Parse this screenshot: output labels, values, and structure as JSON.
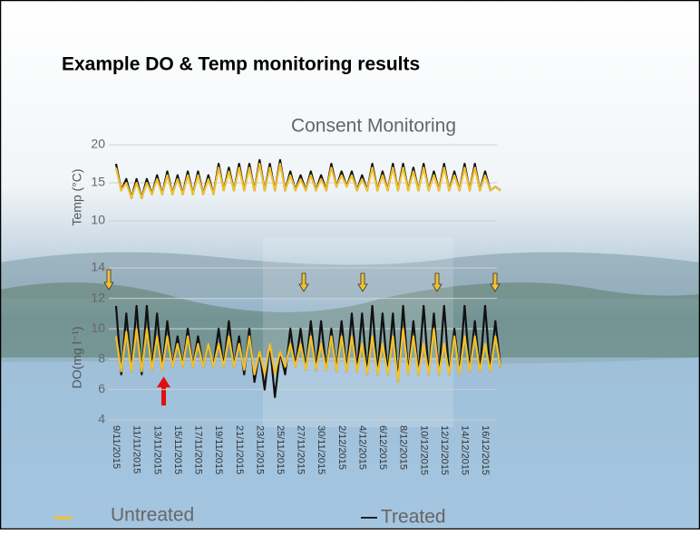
{
  "slide_title": "Example DO & Temp monitoring results",
  "chart_data": [
    {
      "type": "line",
      "title": "Consent Monitoring",
      "y_label": "Temp (°C)",
      "ylim": [
        10,
        20
      ],
      "yticks": [
        10,
        15,
        20
      ],
      "grid": true,
      "series": [
        {
          "color": "#f2c12e",
          "values": [
            17,
            14,
            15,
            13,
            15,
            13,
            15,
            13.5,
            15.5,
            13.5,
            16,
            13.5,
            15.5,
            13.5,
            16,
            13.5,
            16,
            13.5,
            15.5,
            13.5,
            17,
            14,
            16.5,
            14,
            17,
            14,
            17,
            14,
            17.5,
            14,
            17,
            14,
            17.5,
            14,
            16,
            14,
            15.5,
            14,
            16,
            14,
            15.5,
            14,
            17,
            14.5,
            16,
            14.5,
            16,
            14,
            15.5,
            14,
            17,
            14,
            16,
            14,
            17,
            14,
            17,
            14,
            16.5,
            14,
            17,
            14,
            16,
            14,
            17,
            14,
            16,
            14,
            17,
            14,
            17,
            14,
            16,
            14,
            14.5,
            14
          ]
        },
        {
          "color": "#111111",
          "values": [
            17.5,
            14,
            15.5,
            13,
            15.5,
            13,
            15.5,
            13.5,
            16,
            13.5,
            16.5,
            13.5,
            16,
            13.5,
            16.5,
            13.5,
            16.5,
            13.5,
            16,
            13.5,
            17.5,
            14,
            17,
            14,
            17.5,
            14,
            17.5,
            14,
            18,
            14,
            17.5,
            14,
            18,
            14,
            16.5,
            14,
            16,
            14,
            16.5,
            14,
            16,
            14,
            17.5,
            14.5,
            16.5,
            14.5,
            16.5,
            14,
            16,
            14,
            17.5,
            14,
            16.5,
            14,
            17.5,
            14,
            17.5,
            14,
            17,
            14,
            17.5,
            14,
            16.5,
            14,
            17.5,
            14,
            16.5,
            14,
            17.5,
            14,
            17.5,
            14,
            16.5,
            14,
            14.5,
            14
          ]
        }
      ]
    },
    {
      "type": "line",
      "y_label": "DO(mg l⁻¹)",
      "ylim": [
        4,
        14
      ],
      "yticks": [
        4,
        6,
        8,
        10,
        12,
        14
      ],
      "grid": true,
      "categories": [
        "9/11/2015",
        null,
        null,
        null,
        "11/11/2015",
        null,
        null,
        null,
        "13/11/2015",
        null,
        null,
        null,
        "15/11/2015",
        null,
        null,
        null,
        "17/11/2015",
        null,
        null,
        null,
        "19/11/2015",
        null,
        null,
        null,
        "21/11/2015",
        null,
        null,
        null,
        "23/11/2015",
        null,
        null,
        null,
        "25/11/2015",
        null,
        null,
        null,
        "27/11/2015",
        null,
        null,
        null,
        "30/11/2015",
        null,
        null,
        null,
        "2/12/2015",
        null,
        null,
        null,
        "4/12/2015",
        null,
        null,
        null,
        "6/12/2015",
        null,
        null,
        null,
        "8/12/2015",
        null,
        null,
        null,
        "10/12/2015",
        null,
        null,
        null,
        "12/12/2015",
        null,
        null,
        null,
        "14/12/2015",
        null,
        null,
        null,
        "16/12/2015",
        null,
        null,
        null
      ],
      "series": [
        {
          "name": "Untreated",
          "color": "#f2c12e",
          "values": [
            9.5,
            7.2,
            9.8,
            7.2,
            10,
            7.2,
            10,
            7.3,
            9.5,
            7.3,
            9.5,
            7.5,
            9,
            7.5,
            9.5,
            7.5,
            9,
            7.5,
            9,
            7.5,
            9,
            7.5,
            9.5,
            7.5,
            9,
            7.3,
            9.5,
            7,
            8.5,
            7,
            9,
            7,
            8.5,
            7.5,
            9,
            7.5,
            9,
            7.3,
            9.5,
            7.3,
            9,
            7.3,
            9.5,
            7.2,
            9.5,
            7.2,
            9.5,
            7.2,
            9,
            7,
            9.5,
            7,
            9,
            7,
            9.5,
            6.5,
            10,
            7,
            9.5,
            7,
            9,
            7,
            10,
            7,
            9,
            7,
            9.5,
            7,
            9.5,
            7.2,
            9.5,
            7.2,
            9,
            7.2,
            9.5,
            7.5
          ]
        },
        {
          "name": "Treated",
          "color": "#111111",
          "values": [
            11.5,
            7,
            11,
            7.2,
            11.5,
            7,
            11.5,
            7.3,
            11,
            7.3,
            10.5,
            7.5,
            9.5,
            7.5,
            10,
            7.5,
            9.5,
            7.5,
            9,
            7.5,
            10,
            7.5,
            10.5,
            7.5,
            9.5,
            7,
            10,
            6.5,
            8.5,
            6,
            9,
            5.5,
            8.5,
            7,
            10,
            7.5,
            10,
            7.3,
            10.5,
            7.3,
            10.5,
            7.3,
            10,
            7.2,
            10.5,
            7.2,
            11,
            7.2,
            11,
            7,
            11.5,
            7,
            11,
            7,
            11,
            6.5,
            11.5,
            7,
            10.5,
            7,
            11.5,
            7,
            11,
            7,
            11.5,
            7,
            10,
            7,
            11.5,
            7.2,
            10.5,
            7.2,
            11.5,
            7.2,
            10.5,
            7.5
          ]
        }
      ]
    }
  ]
}
